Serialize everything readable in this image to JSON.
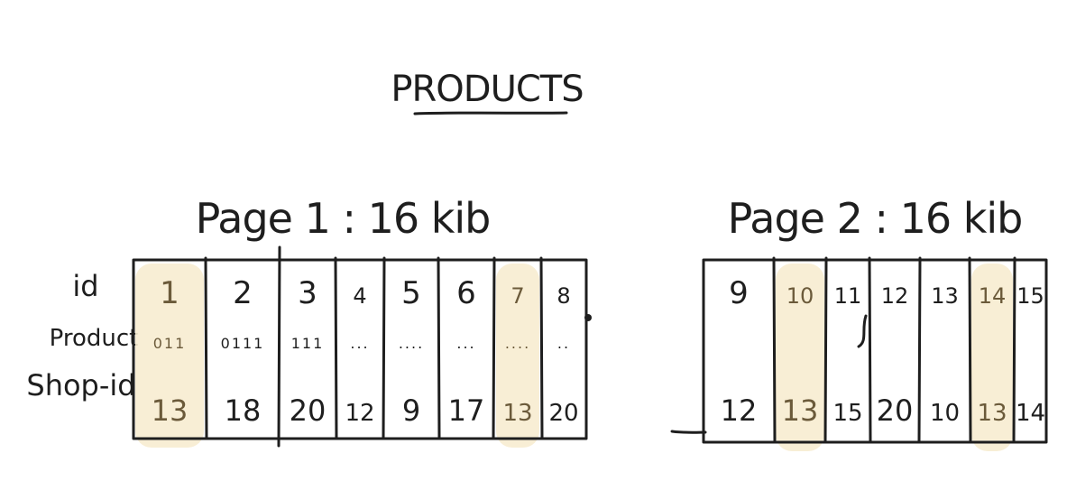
{
  "title": "PRODUCTS",
  "row_labels": {
    "id": "id",
    "product": "Product",
    "shop_id": "Shop-id"
  },
  "highlight_color": "#f7ecd0",
  "pages": [
    {
      "title": "Page 1 : 16 kib",
      "cells": [
        {
          "id": "1",
          "product": "011",
          "shop_id": "13",
          "highlighted": true
        },
        {
          "id": "2",
          "product": "0111",
          "shop_id": "18",
          "highlighted": false
        },
        {
          "id": "3",
          "product": "111",
          "shop_id": "20",
          "highlighted": false
        },
        {
          "id": "4",
          "product": "...",
          "shop_id": "12",
          "highlighted": false
        },
        {
          "id": "5",
          "product": "....",
          "shop_id": "9",
          "highlighted": false
        },
        {
          "id": "6",
          "product": "...",
          "shop_id": "17",
          "highlighted": false
        },
        {
          "id": "7",
          "product": "....",
          "shop_id": "13",
          "highlighted": true
        },
        {
          "id": "8",
          "product": "..",
          "shop_id": "20",
          "highlighted": false
        }
      ]
    },
    {
      "title": "Page 2 : 16 kib",
      "cells": [
        {
          "id": "9",
          "product": "",
          "shop_id": "12",
          "highlighted": false
        },
        {
          "id": "10",
          "product": "",
          "shop_id": "13",
          "highlighted": true
        },
        {
          "id": "11",
          "product": "",
          "shop_id": "15",
          "highlighted": false
        },
        {
          "id": "12",
          "product": "",
          "shop_id": "20",
          "highlighted": false
        },
        {
          "id": "13",
          "product": "",
          "shop_id": "10",
          "highlighted": false
        },
        {
          "id": "14",
          "product": "",
          "shop_id": "13",
          "highlighted": true
        },
        {
          "id": "15",
          "product": "",
          "shop_id": "14",
          "highlighted": false
        }
      ]
    }
  ]
}
